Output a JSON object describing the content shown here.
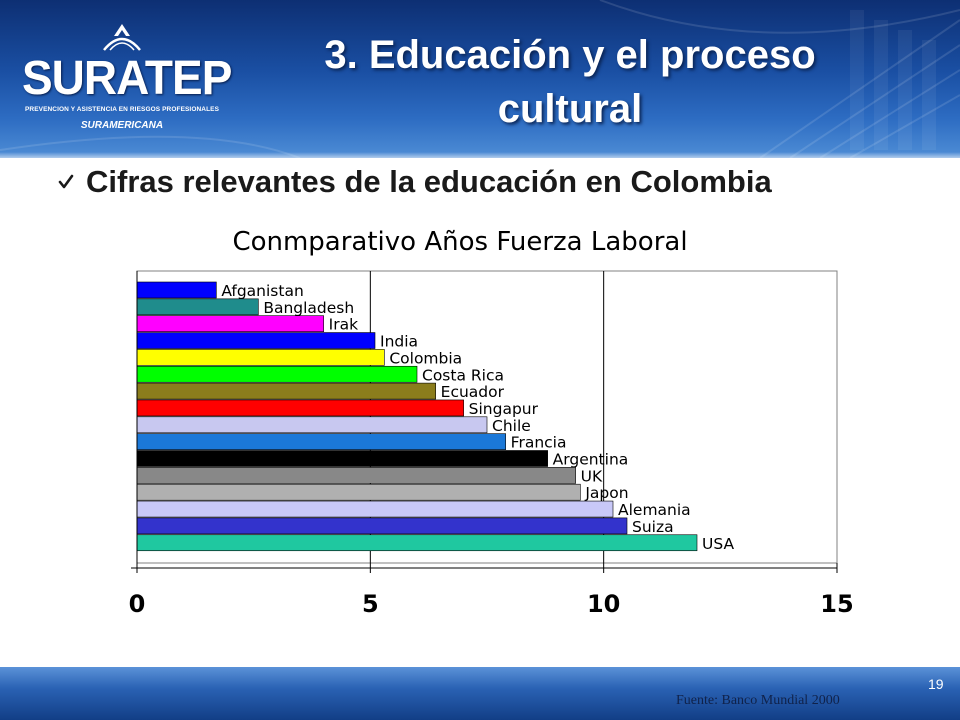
{
  "header": {
    "logo_text": "SURATEP",
    "logo_subtitle": "PREVENCION Y ASISTENCIA EN RIESGOS PROFESIONALES",
    "logo_brand": "SURAMERICANA",
    "title_line1": "3. Educación y el proceso",
    "title_line2": "cultural"
  },
  "subtitle": "Cifras relevantes de la educación en Colombia",
  "bullet_icon": "checkmark-icon",
  "chart_data": {
    "type": "bar",
    "orientation": "horizontal",
    "title": "Conmparativo Años Fuerza Laboral",
    "categories": [
      "Afganistan",
      "Bangladesh",
      "Irak",
      "India",
      "Colombia",
      "Costa Rica",
      "Ecuador",
      "Singapur",
      "Chile",
      "Francia",
      "Argentina",
      "UK",
      "Japon",
      "Alemania",
      "Suiza",
      "USA"
    ],
    "values": [
      1.7,
      2.6,
      4.0,
      5.1,
      5.3,
      6.0,
      6.4,
      7.0,
      7.5,
      7.9,
      8.8,
      9.4,
      9.5,
      10.2,
      10.5,
      12.0
    ],
    "colors": [
      "#0000ff",
      "#1f8c8c",
      "#ff00ff",
      "#0000ff",
      "#ffff00",
      "#00ff00",
      "#8b7d1c",
      "#ff0000",
      "#c8c8f0",
      "#1b78d8",
      "#000000",
      "#888888",
      "#b0b0b0",
      "#c8c8f8",
      "#3333cc",
      "#1fc8a0"
    ],
    "xlim": [
      0,
      15
    ],
    "xticks": [
      0,
      5,
      10,
      15
    ],
    "xlabel": "",
    "ylabel": "",
    "grid": true,
    "legend": "none"
  },
  "footer": {
    "source": "Fuente: Banco Mundial 2000",
    "page_number": "19"
  }
}
